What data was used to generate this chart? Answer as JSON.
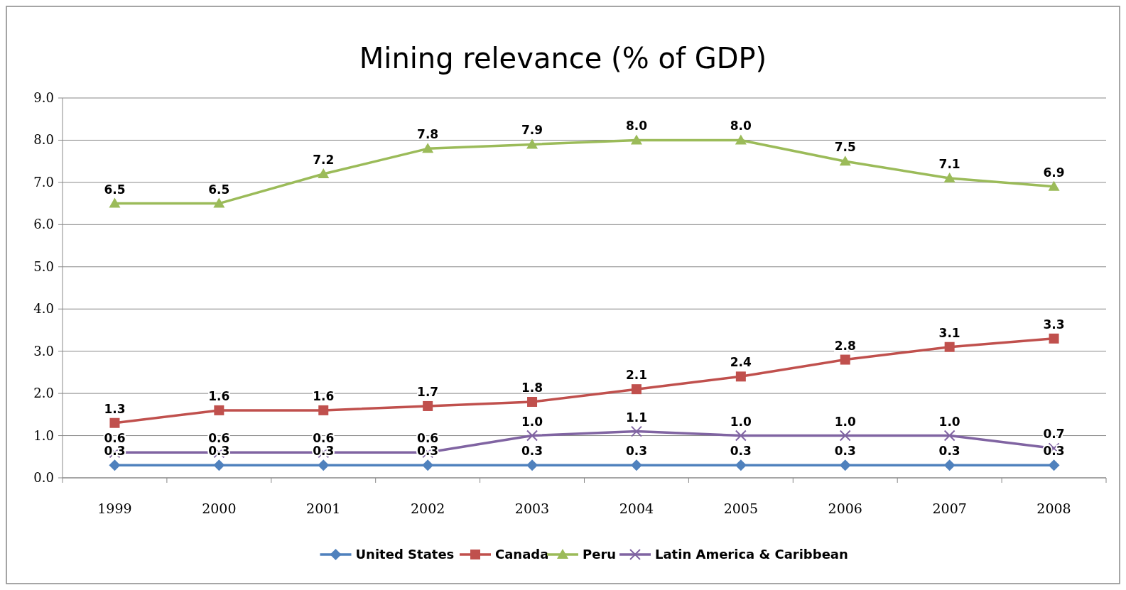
{
  "chart_data": {
    "type": "line",
    "title": "Mining relevance (% of GDP)",
    "categories": [
      "1999",
      "2000",
      "2001",
      "2002",
      "2003",
      "2004",
      "2005",
      "2006",
      "2007",
      "2008"
    ],
    "series": [
      {
        "name": "United States",
        "color": "#4f81bd",
        "marker": "diamond",
        "values": [
          0.3,
          0.3,
          0.3,
          0.3,
          0.3,
          0.3,
          0.3,
          0.3,
          0.3,
          0.3
        ],
        "value_labels": [
          "0.3",
          "0.3",
          "0.3",
          "0.3",
          "0.3",
          "0.3",
          "0.3",
          "0.3",
          "0.3",
          "0.3"
        ]
      },
      {
        "name": "Canada",
        "color": "#c0504d",
        "marker": "square",
        "values": [
          1.3,
          1.6,
          1.6,
          1.7,
          1.8,
          2.1,
          2.4,
          2.8,
          3.1,
          3.3
        ],
        "value_labels": [
          "1.3",
          "1.6",
          "1.6",
          "1.7",
          "1.8",
          "2.1",
          "2.4",
          "2.8",
          "3.1",
          "3.3"
        ]
      },
      {
        "name": "Peru",
        "color": "#9bbb59",
        "marker": "triangle",
        "values": [
          6.5,
          6.5,
          7.2,
          7.8,
          7.9,
          8.0,
          8.0,
          7.5,
          7.1,
          6.9
        ],
        "value_labels": [
          "6.5",
          "6.5",
          "7.2",
          "7.8",
          "7.9",
          "8.0",
          "8.0",
          "7.5",
          "7.1",
          "6.9"
        ]
      },
      {
        "name": "Latin America & Caribbean",
        "color": "#8064a2",
        "marker": "cross",
        "values": [
          0.6,
          0.6,
          0.6,
          0.6,
          1.0,
          1.1,
          1.0,
          1.0,
          1.0,
          0.7
        ],
        "value_labels": [
          "0.6",
          "0.6",
          "0.6",
          "0.6",
          "1.0",
          "1.1",
          "1.0",
          "1.0",
          "1.0",
          "0.7"
        ]
      }
    ],
    "ylim": [
      0,
      9
    ],
    "yticks": [
      {
        "value": 0,
        "label": "0.0"
      },
      {
        "value": 1,
        "label": "1.0"
      },
      {
        "value": 2,
        "label": "2.0"
      },
      {
        "value": 3,
        "label": "3.0"
      },
      {
        "value": 4,
        "label": "4.0"
      },
      {
        "value": 5,
        "label": "5.0"
      },
      {
        "value": 6,
        "label": "6.0"
      },
      {
        "value": 7,
        "label": "7.0"
      },
      {
        "value": 8,
        "label": "8.0"
      },
      {
        "value": 9,
        "label": "9.0"
      }
    ],
    "grid": "y",
    "legend": "bottom",
    "line_style": "solid"
  }
}
